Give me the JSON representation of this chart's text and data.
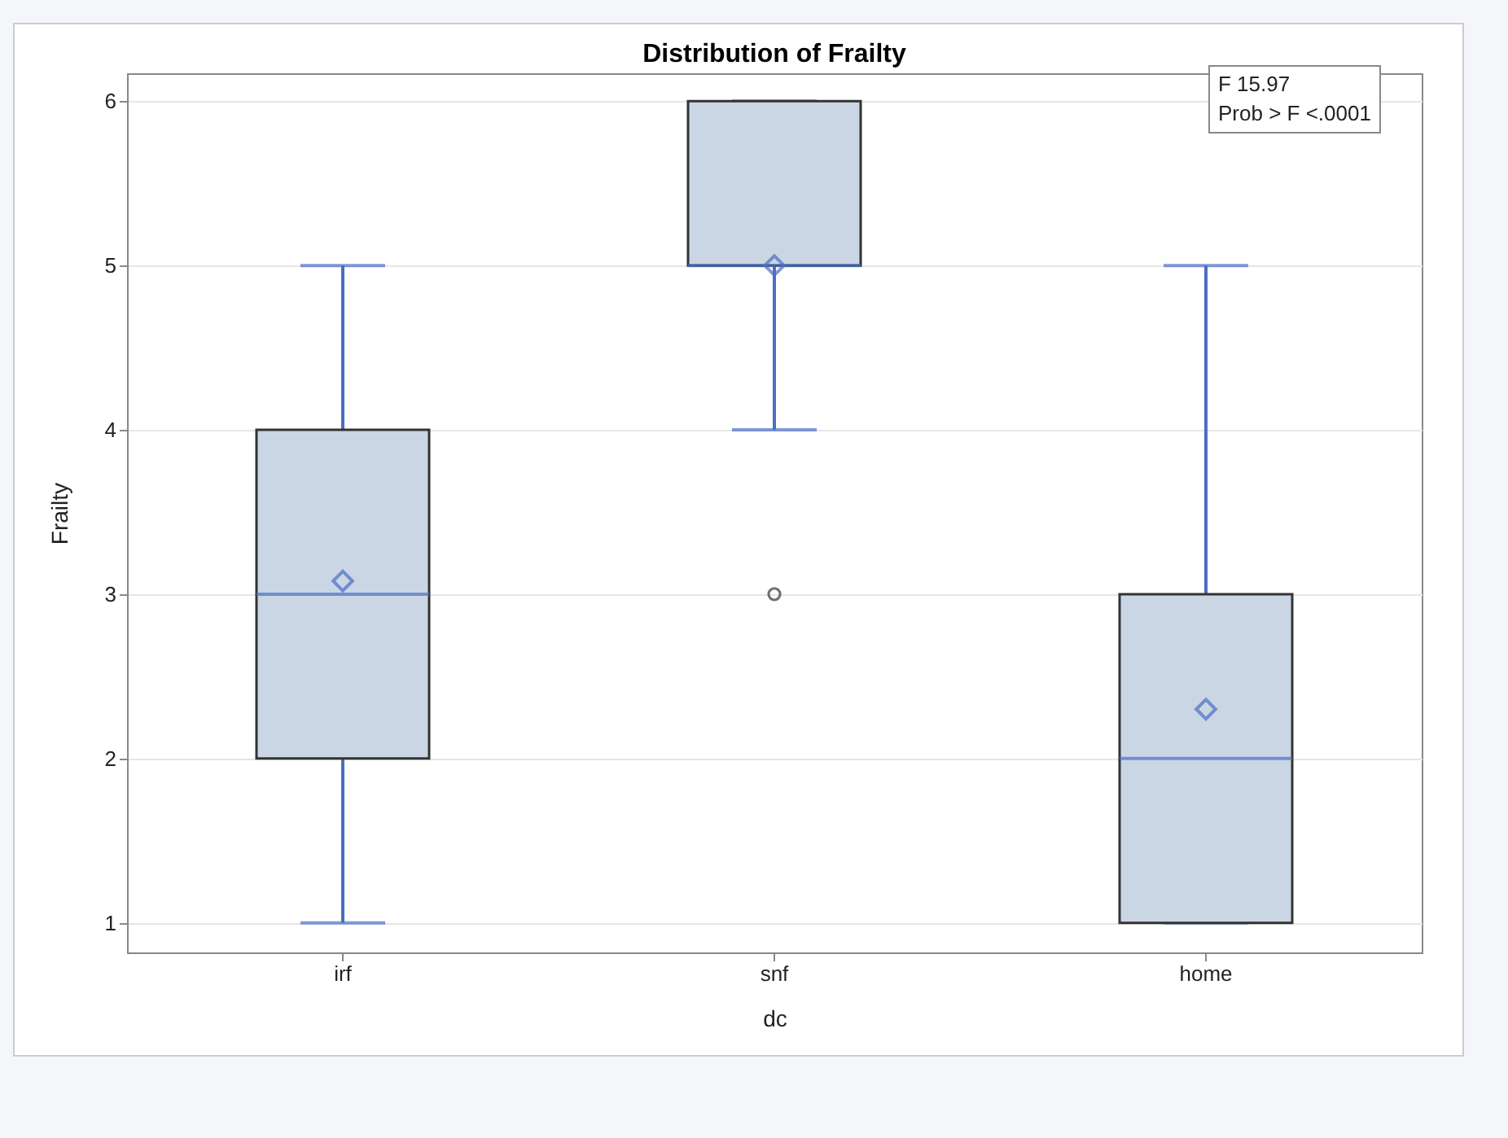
{
  "chart_data": {
    "type": "box",
    "title": "Distribution of Frailty",
    "xlabel": "dc",
    "ylabel": "Frailty",
    "categories": [
      "irf",
      "snf",
      "home"
    ],
    "series": [
      {
        "color": "#cbd6e4",
        "boxes": [
          {
            "low": 1,
            "q1": 2,
            "median": 3,
            "q3": 4,
            "high": 5,
            "mean": 3.08
          },
          {
            "low": 4,
            "q1": 5,
            "median": 5,
            "q3": 6,
            "high": 6,
            "mean": 5.0,
            "outliers": [
              3
            ]
          },
          {
            "low": 1,
            "q1": 1,
            "median": 2,
            "q3": 3,
            "high": 5,
            "mean": 2.3
          }
        ]
      }
    ],
    "ylim": [
      0.82,
      6.17
    ],
    "yticks": [
      1,
      2,
      3,
      4,
      5,
      6
    ],
    "grid": "y",
    "annotations": [
      "F 15.97",
      "Prob > F <.0001"
    ]
  }
}
